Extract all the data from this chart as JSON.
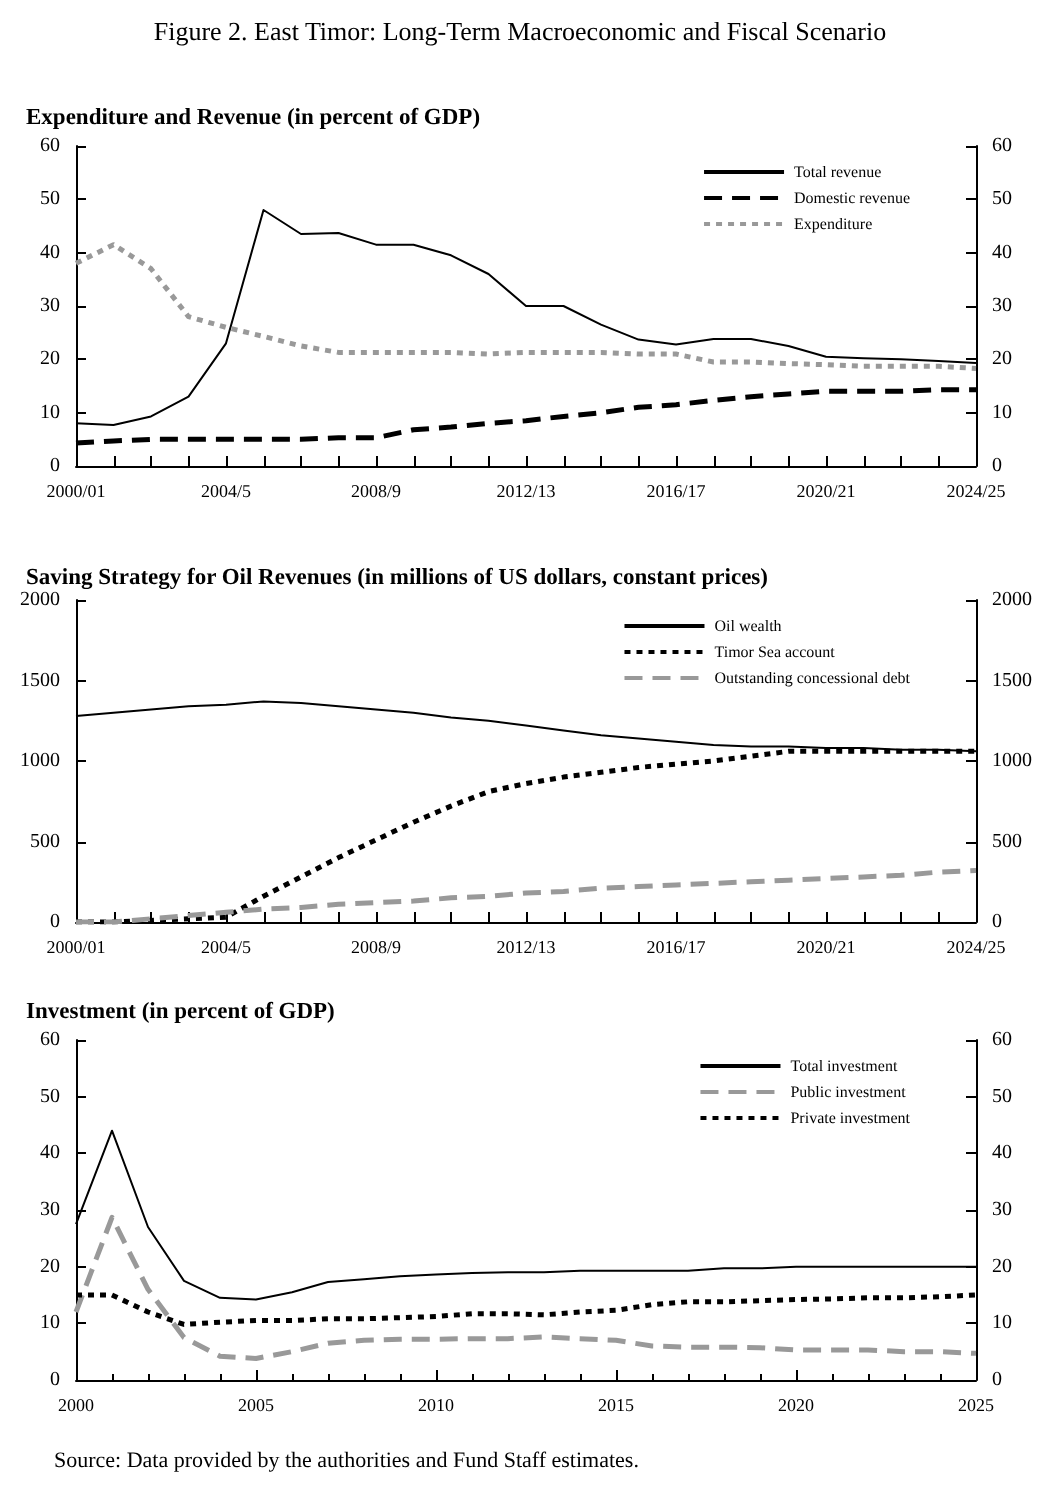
{
  "chart_data": [
    {
      "type": "line",
      "title": "Figure 2. East Timor: Long-Term Macroeconomic and Fiscal Scenario",
      "subtitle": "Expenditure and Revenue (in percent of GDP)",
      "categories": [
        "2000/01",
        null,
        null,
        null,
        "2004/5",
        null,
        null,
        null,
        "2008/9",
        null,
        null,
        null,
        "2012/13",
        null,
        null,
        null,
        "2016/17",
        null,
        null,
        null,
        "2020/21",
        null,
        null,
        null,
        "2024/25"
      ],
      "series": [
        {
          "name": "Total revenue",
          "color": "#000000",
          "line_style": "solid",
          "values": [
            8,
            7.7,
            9.3,
            13,
            23,
            48,
            43.5,
            43.7,
            41.5,
            41.5,
            39.5,
            36,
            30,
            30,
            26.5,
            23.7,
            22.8,
            23.8,
            23.8,
            22.5,
            20.5,
            20.2,
            20,
            19.7,
            19.3
          ]
        },
        {
          "name": "Domestic revenue",
          "color": "#000000",
          "line_style": "dashed",
          "values": [
            4.3,
            4.7,
            5,
            5,
            5,
            5,
            5,
            5.3,
            5.3,
            6.8,
            7.3,
            8,
            8.5,
            9.3,
            10,
            11,
            11.5,
            12.3,
            13,
            13.5,
            14,
            14,
            14,
            14.3,
            14.3
          ]
        },
        {
          "name": "Expenditure",
          "color": "#999999",
          "line_style": "dotted",
          "values": [
            38,
            41.5,
            37,
            28,
            26,
            24.3,
            22.5,
            21.3,
            21.3,
            21.3,
            21.3,
            21,
            21.3,
            21.3,
            21.3,
            21,
            21,
            19.5,
            19.5,
            19.2,
            19,
            18.7,
            18.7,
            18.7,
            18.3
          ]
        }
      ],
      "ylim": [
        0,
        60
      ],
      "yticks": [
        0,
        10,
        20,
        30,
        40,
        50,
        60
      ],
      "y2lim": [
        0,
        60
      ],
      "y2ticks": [
        0,
        10,
        20,
        30,
        40,
        50,
        60
      ],
      "grid": false,
      "legend": "top right",
      "marker": "none"
    },
    {
      "type": "line",
      "title": "Saving Strategy for Oil Revenues (in millions of US dollars, constant prices)",
      "categories": [
        "2000/01",
        null,
        null,
        null,
        "2004/5",
        null,
        null,
        null,
        "2008/9",
        null,
        null,
        null,
        "2012/13",
        null,
        null,
        null,
        "2016/17",
        null,
        null,
        null,
        "2020/21",
        null,
        null,
        null,
        "2024/25"
      ],
      "series": [
        {
          "name": "Oil wealth",
          "color": "#000000",
          "line_style": "solid",
          "values": [
            1280,
            1300,
            1320,
            1340,
            1350,
            1370,
            1360,
            1340,
            1320,
            1300,
            1270,
            1250,
            1220,
            1190,
            1160,
            1140,
            1120,
            1100,
            1090,
            1090,
            1080,
            1080,
            1070,
            1070,
            1060
          ]
        },
        {
          "name": "Timor Sea account",
          "color": "#000000",
          "line_style": "dotted",
          "values": [
            0,
            0,
            10,
            20,
            30,
            160,
            280,
            400,
            510,
            620,
            720,
            810,
            860,
            900,
            930,
            960,
            980,
            1000,
            1030,
            1060,
            1060,
            1060,
            1060,
            1060,
            1060
          ]
        },
        {
          "name": "Outstanding concessional debt",
          "color": "#999999",
          "line_style": "dashed",
          "values": [
            0,
            0,
            20,
            40,
            60,
            80,
            90,
            110,
            120,
            130,
            150,
            160,
            180,
            190,
            210,
            220,
            230,
            240,
            250,
            260,
            270,
            280,
            290,
            310,
            320
          ]
        }
      ],
      "ylim": [
        0,
        2000
      ],
      "yticks": [
        0,
        500,
        1000,
        1500,
        2000
      ],
      "y2lim": [
        0,
        2000
      ],
      "y2ticks": [
        0,
        500,
        1000,
        1500,
        2000
      ],
      "grid": false,
      "legend": "top right",
      "marker": "none"
    },
    {
      "type": "line",
      "title": "Investment (in percent of GDP)",
      "x": [
        2000,
        2001,
        2002,
        2003,
        2004,
        2005,
        2006,
        2007,
        2008,
        2009,
        2010,
        2011,
        2012,
        2013,
        2014,
        2015,
        2016,
        2017,
        2018,
        2019,
        2020,
        2021,
        2022,
        2023,
        2024,
        2025
      ],
      "series": [
        {
          "name": "Total investment",
          "color": "#000000",
          "line_style": "solid",
          "values": [
            27.5,
            44,
            27,
            17.5,
            14.5,
            14.2,
            15.5,
            17.3,
            17.8,
            18.3,
            18.6,
            18.9,
            19,
            19,
            19.3,
            19.3,
            19.3,
            19.3,
            19.7,
            19.7,
            20,
            20,
            20,
            20,
            20,
            20
          ]
        },
        {
          "name": "Public investment",
          "color": "#999999",
          "line_style": "dashed",
          "values": [
            12,
            28.7,
            16,
            7.5,
            4.2,
            3.8,
            5,
            6.5,
            7,
            7.2,
            7.2,
            7.3,
            7.3,
            7.6,
            7.3,
            7,
            6,
            5.8,
            5.8,
            5.7,
            5.3,
            5.3,
            5.3,
            5,
            5,
            4.7
          ]
        },
        {
          "name": "Private investment",
          "color": "#000000",
          "line_style": "dotted",
          "values": [
            15,
            15,
            12,
            9.8,
            10.2,
            10.5,
            10.5,
            10.8,
            10.8,
            11,
            11.2,
            11.7,
            11.7,
            11.5,
            12,
            12.3,
            13.3,
            13.8,
            13.8,
            14,
            14.2,
            14.3,
            14.5,
            14.5,
            14.7,
            15
          ]
        }
      ],
      "xlim": [
        2000,
        2025
      ],
      "xticks": [
        2000,
        2005,
        2010,
        2015,
        2020,
        2025
      ],
      "ylim": [
        0,
        60
      ],
      "yticks": [
        0,
        10,
        20,
        30,
        40,
        50,
        60
      ],
      "y2lim": [
        0,
        60
      ],
      "y2ticks": [
        0,
        10,
        20,
        30,
        40,
        50,
        60
      ],
      "grid": false,
      "legend": "top right",
      "marker": "none",
      "annotations": [
        "Source: Data provided by the authorities and Fund Staff estimates."
      ]
    }
  ]
}
